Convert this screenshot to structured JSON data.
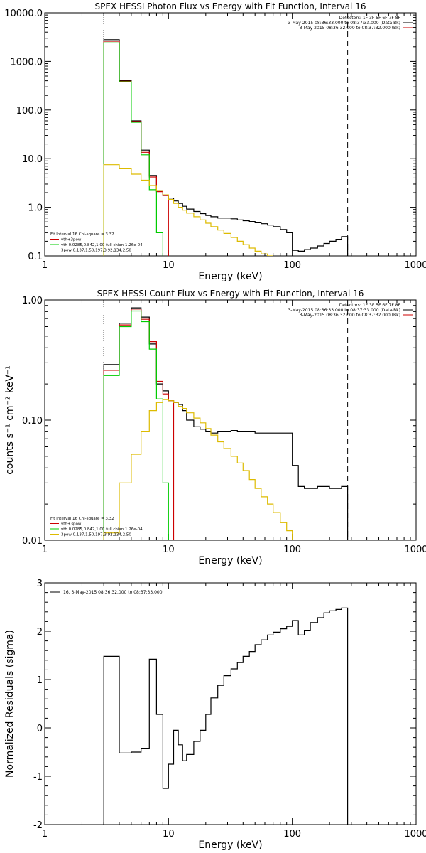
{
  "chart_data": [
    {
      "type": "line",
      "id": "photon",
      "title": "SPEX HESSI Photon Flux vs Energy with Fit Function, Interval 16",
      "xlabel": "Energy (keV)",
      "ylabel": "",
      "xscale": "log",
      "yscale": "log",
      "xlim": [
        1,
        1000
      ],
      "ylim": [
        0.1,
        10000
      ],
      "xticks": [
        {
          "v": 1,
          "label": "1"
        },
        {
          "v": 10,
          "label": "10"
        },
        {
          "v": 100,
          "label": "100"
        },
        {
          "v": 1000,
          "label": "1000"
        }
      ],
      "yticks": [
        {
          "v": 0.1,
          "label": "0.1"
        },
        {
          "v": 1,
          "label": "1.0"
        },
        {
          "v": 10,
          "label": "10.0"
        },
        {
          "v": 100,
          "label": "100.0"
        },
        {
          "v": 1000,
          "label": "1000.0"
        },
        {
          "v": 10000,
          "label": "10000.0"
        }
      ],
      "vlines": [
        {
          "x": 3,
          "style": "dotted"
        },
        {
          "x": 280,
          "style": "dashed"
        }
      ],
      "info_lines": [
        "Detectors: 1F 3F 5F 6F 7F 8F",
        "3-May-2015 08:36:33.000 to 08:37:33.000 (Data-Bk)",
        "3-May-2015 08:36:32.000 to 08:37:32.000 (Bk)"
      ],
      "info_colors": [
        "",
        "#000000",
        "#cc0000"
      ],
      "legend_lines": [
        {
          "text": "Fit Interval 16   Chi-square = 3.32",
          "color": ""
        },
        {
          "text": "vth+3pow",
          "color": "#cc0000"
        },
        {
          "text": "vth 0.0285,0.842,1.00  full chian 1.26e-04",
          "color": "#00cc00"
        },
        {
          "text": "3pow 0.137,1.50,197,3.92,134,2.50",
          "color": "#ddbb00"
        }
      ],
      "series": [
        {
          "color": "#000000",
          "edges": [
            3,
            4,
            5,
            6,
            7,
            8,
            9,
            10,
            11,
            12,
            13,
            14,
            16,
            18,
            20,
            22,
            25,
            28,
            32,
            36,
            40,
            45,
            50,
            56,
            63,
            70,
            80,
            90,
            100,
            112,
            125,
            140,
            160,
            180,
            200,
            225,
            250,
            280
          ],
          "values": [
            2800,
            400,
            60,
            15,
            4.5,
            2.2,
            1.75,
            1.55,
            1.35,
            1.2,
            1.05,
            0.92,
            0.82,
            0.74,
            0.68,
            0.64,
            0.6,
            0.6,
            0.58,
            0.55,
            0.53,
            0.51,
            0.48,
            0.46,
            0.43,
            0.4,
            0.35,
            0.3,
            0.13,
            0.125,
            0.135,
            0.145,
            0.16,
            0.18,
            0.2,
            0.22,
            0.25
          ]
        },
        {
          "color": "#cc0000",
          "edges": [
            3,
            4,
            5,
            6,
            7,
            8,
            9,
            10
          ],
          "values": [
            2600,
            390,
            58,
            13.5,
            4.2,
            2.1,
            1.75
          ]
        },
        {
          "color": "#00cc00",
          "edges": [
            3,
            4,
            5,
            6,
            7,
            8,
            9
          ],
          "values": [
            2400,
            380,
            56,
            12,
            2.3,
            0.3
          ]
        },
        {
          "color": "#ddbb00",
          "edges": [
            3,
            4,
            5,
            6,
            7,
            8,
            9,
            10,
            11,
            12,
            13,
            14,
            16,
            18,
            20,
            22,
            25,
            28,
            32,
            36,
            40,
            45,
            50,
            56,
            63,
            70
          ],
          "values": [
            7.5,
            6.2,
            4.8,
            3.6,
            2.8,
            2.2,
            1.8,
            1.45,
            1.2,
            1.0,
            0.87,
            0.76,
            0.64,
            0.55,
            0.47,
            0.4,
            0.34,
            0.29,
            0.24,
            0.2,
            0.17,
            0.145,
            0.125,
            0.11,
            0.1
          ]
        }
      ]
    },
    {
      "type": "line",
      "id": "count",
      "title": "SPEX HESSI Count Flux vs Energy with Fit Function, Interval 16",
      "xlabel": "Energy (keV)",
      "ylabel": "counts s⁻¹ cm⁻² keV⁻¹",
      "xscale": "log",
      "yscale": "log",
      "xlim": [
        1,
        1000
      ],
      "ylim": [
        0.01,
        1
      ],
      "xticks": [
        {
          "v": 1,
          "label": "1"
        },
        {
          "v": 10,
          "label": "10"
        },
        {
          "v": 100,
          "label": "100"
        },
        {
          "v": 1000,
          "label": "1000"
        }
      ],
      "yticks": [
        {
          "v": 0.01,
          "label": "0.01"
        },
        {
          "v": 0.1,
          "label": "0.10"
        },
        {
          "v": 1,
          "label": "1.00"
        }
      ],
      "vlines": [
        {
          "x": 3,
          "style": "dotted"
        },
        {
          "x": 280,
          "style": "dashed"
        }
      ],
      "info_lines": [
        "Detectors: 1F 3F 5F 6F 7F 8F",
        "3-May-2015 08:36:33.000 to 08:37:33.000 (Data-Bk)",
        "3-May-2015 08:36:32.000 to 08:37:32.000 (Bk)"
      ],
      "info_colors": [
        "",
        "#000000",
        "#cc0000"
      ],
      "legend_lines": [
        {
          "text": "Fit Interval 16   Chi-square = 3.32",
          "color": ""
        },
        {
          "text": "vth+3pow",
          "color": "#cc0000"
        },
        {
          "text": "vth 0.0285,0.842,1.00  full chian 1.26e-04",
          "color": "#00cc00"
        },
        {
          "text": "3pow 0.137,1.50,197,3.92,134,2.50",
          "color": "#ddbb00"
        }
      ],
      "series": [
        {
          "color": "#000000",
          "edges": [
            3,
            4,
            5,
            6,
            7,
            8,
            9,
            10,
            11,
            12,
            13,
            14,
            16,
            18,
            20,
            22,
            25,
            28,
            32,
            36,
            40,
            45,
            50,
            56,
            63,
            70,
            80,
            90,
            100,
            112,
            125,
            140,
            160,
            180,
            200,
            225,
            250,
            280
          ],
          "values": [
            0.29,
            0.64,
            0.86,
            0.72,
            0.43,
            0.2,
            0.175,
            0.145,
            0.14,
            0.135,
            0.12,
            0.1,
            0.088,
            0.084,
            0.08,
            0.078,
            0.08,
            0.08,
            0.082,
            0.08,
            0.08,
            0.08,
            0.078,
            0.078,
            0.078,
            0.078,
            0.078,
            0.078,
            0.042,
            0.028,
            0.027,
            0.027,
            0.028,
            0.028,
            0.027,
            0.027,
            0.028
          ]
        },
        {
          "color": "#cc0000",
          "edges": [
            3,
            4,
            5,
            6,
            7,
            8,
            9,
            10,
            11
          ],
          "values": [
            0.26,
            0.62,
            0.84,
            0.69,
            0.45,
            0.21,
            0.165,
            0.145
          ]
        },
        {
          "color": "#00cc00",
          "edges": [
            3,
            4,
            5,
            6,
            7,
            8,
            9,
            10
          ],
          "values": [
            0.235,
            0.6,
            0.81,
            0.66,
            0.39,
            0.15,
            0.03
          ]
        },
        {
          "color": "#ddbb00",
          "edges": [
            3,
            4,
            5,
            6,
            7,
            8,
            9,
            10,
            11,
            12,
            13,
            14,
            16,
            18,
            20,
            22,
            25,
            28,
            32,
            36,
            40,
            45,
            50,
            56,
            63,
            70,
            80,
            90,
            100
          ],
          "values": [
            0.0115,
            0.03,
            0.052,
            0.08,
            0.12,
            0.14,
            0.148,
            0.145,
            0.14,
            0.13,
            0.125,
            0.115,
            0.104,
            0.095,
            0.085,
            0.075,
            0.066,
            0.058,
            0.05,
            0.044,
            0.038,
            0.032,
            0.027,
            0.023,
            0.02,
            0.017,
            0.014,
            0.012
          ]
        }
      ]
    },
    {
      "type": "line",
      "id": "resid",
      "title": "",
      "xlabel": "Energy (keV)",
      "ylabel": "Normalized Residuals (sigma)",
      "xscale": "log",
      "yscale": "linear",
      "xlim": [
        1,
        1000
      ],
      "ylim": [
        -2,
        3
      ],
      "xticks": [
        {
          "v": 1,
          "label": "1"
        },
        {
          "v": 10,
          "label": "10"
        },
        {
          "v": 100,
          "label": "100"
        },
        {
          "v": 1000,
          "label": "1000"
        }
      ],
      "yticks": [
        {
          "v": -2,
          "label": "-2"
        },
        {
          "v": -1,
          "label": "-1"
        },
        {
          "v": 0,
          "label": "0"
        },
        {
          "v": 1,
          "label": "1"
        },
        {
          "v": 2,
          "label": "2"
        },
        {
          "v": 3,
          "label": "3"
        }
      ],
      "vlines": [],
      "info_lines": [],
      "info_colors": [],
      "legend_lines": [
        {
          "text": "16.  3-May-2015 08:36:32.000 to 08:37:33.000",
          "color": "#000000"
        }
      ],
      "series": [
        {
          "color": "#000000",
          "edges": [
            3,
            4,
            5,
            6,
            7,
            8,
            9,
            10,
            11,
            12,
            13,
            14,
            16,
            18,
            20,
            22,
            25,
            28,
            32,
            36,
            40,
            45,
            50,
            56,
            63,
            70,
            80,
            90,
            100,
            112,
            125,
            140,
            160,
            180,
            200,
            225,
            250,
            280
          ],
          "values": [
            1.48,
            -0.52,
            -0.5,
            -0.42,
            1.42,
            0.28,
            -1.25,
            -0.75,
            -0.05,
            -0.35,
            -0.68,
            -0.55,
            -0.28,
            -0.05,
            0.28,
            0.62,
            0.88,
            1.08,
            1.22,
            1.35,
            1.48,
            1.58,
            1.72,
            1.82,
            1.92,
            1.98,
            2.05,
            2.1,
            2.22,
            1.92,
            2.02,
            2.18,
            2.28,
            2.38,
            2.42,
            2.45,
            2.48
          ]
        }
      ]
    }
  ]
}
